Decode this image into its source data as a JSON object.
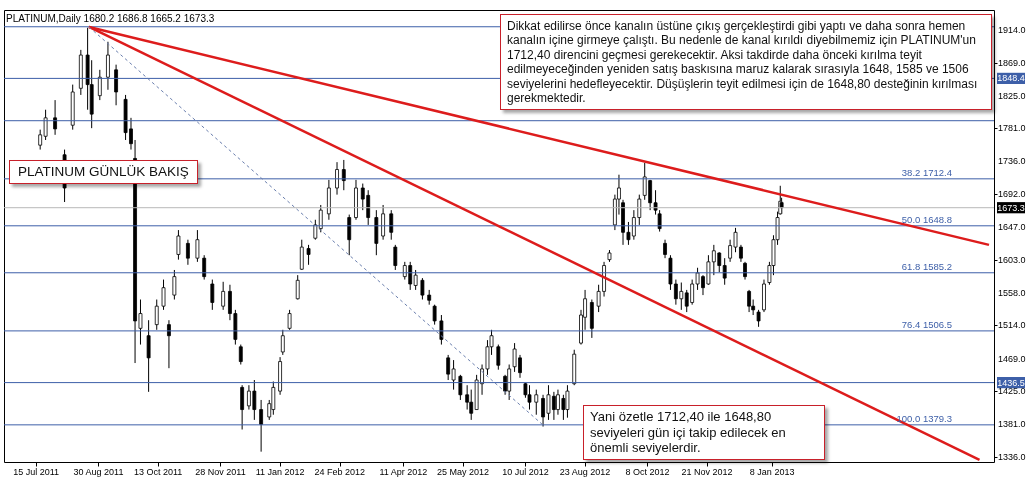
{
  "chart_data": {
    "type": "candlestick",
    "title": "PLATINUM,Daily  1680.2 1686.8 1665.2 1673.3",
    "annotations": [
      "PLATINUM GÜNLÜK BAKIŞ",
      "Dikkat edilirse önce kanalın üstüne çıkış gerçekleştirdi gibi yaptı ve daha sonra hemen kanalın içine girmeye çalıştı. Bu nedenle de kanal kırıldı diyebilmemiz için PLATINUM'un 1712,40 direncini geçmesi gerekecektir. Aksi takdirde daha önceki kırılma teyit edilmeyeceğinden yeniden satış baskısına maruz kalarak sırasıyla 1648, 1585 ve 1506 seviyelerini hedefleyecektir. Düşüşlerin teyit edilmesi için de 1648,80 desteğinin kırılması gerekmektedir.",
      "Yani özetle 1712,40 ile 1648,80 seviyeleri gün içi takip edilecek en önemli seviyelerdir."
    ],
    "color": "#000000",
    "x": [
      "2011-07-18",
      "2011-07-22",
      "2011-07-29",
      "2011-08-05",
      "2011-08-11",
      "2011-08-17",
      "2011-08-22",
      "2011-08-25",
      "2011-08-31",
      "2011-09-06",
      "2011-09-12",
      "2011-09-19",
      "2011-09-23",
      "2011-09-26",
      "2011-09-30",
      "2011-10-06",
      "2011-10-12",
      "2011-10-17",
      "2011-10-21",
      "2011-10-25",
      "2011-10-28",
      "2011-11-04",
      "2011-11-11",
      "2011-11-16",
      "2011-11-22",
      "2011-11-30",
      "2011-12-05",
      "2011-12-09",
      "2011-12-13",
      "2011-12-14",
      "2011-12-19",
      "2011-12-23",
      "2011-12-28",
      "2012-01-03",
      "2012-01-06",
      "2012-01-11",
      "2012-01-13",
      "2012-01-18",
      "2012-01-24",
      "2012-01-27",
      "2012-02-01",
      "2012-02-06",
      "2012-02-10",
      "2012-02-16",
      "2012-02-22",
      "2012-02-27",
      "2012-03-02",
      "2012-03-07",
      "2012-03-12",
      "2012-03-16",
      "2012-03-22",
      "2012-03-27",
      "2012-04-02",
      "2012-04-05",
      "2012-04-12",
      "2012-04-16",
      "2012-04-20",
      "2012-04-25",
      "2012-04-30",
      "2012-05-04",
      "2012-05-09",
      "2012-05-14",
      "2012-05-18",
      "2012-05-23",
      "2012-05-28",
      "2012-05-31",
      "2012-06-04",
      "2012-06-08",
      "2012-06-12",
      "2012-06-15",
      "2012-06-20",
      "2012-06-25",
      "2012-06-28",
      "2012-07-02",
      "2012-07-06",
      "2012-07-10",
      "2012-07-13",
      "2012-07-18",
      "2012-07-23",
      "2012-07-27",
      "2012-07-31",
      "2012-08-03",
      "2012-08-07",
      "2012-08-10",
      "2012-08-15",
      "2012-08-20",
      "2012-08-23",
      "2012-08-28",
      "2012-09-02",
      "2012-09-06",
      "2012-09-10",
      "2012-09-14",
      "2012-09-17",
      "2012-09-20",
      "2012-09-24",
      "2012-09-28",
      "2012-10-02",
      "2012-10-06",
      "2012-10-10",
      "2012-10-14",
      "2012-10-17",
      "2012-10-21",
      "2012-10-25",
      "2012-10-29",
      "2012-11-02",
      "2012-11-06",
      "2012-11-10",
      "2012-11-14",
      "2012-11-18",
      "2012-11-22",
      "2012-11-26",
      "2012-11-30",
      "2012-12-04",
      "2012-12-08",
      "2012-12-12",
      "2012-12-16",
      "2012-12-19",
      "2012-12-22",
      "2012-12-25",
      "2012-12-29",
      "2013-01-02",
      "2013-01-06",
      "2013-01-09",
      "2013-01-12",
      "2013-01-14",
      "2013-01-15"
    ],
    "ohlc": [
      [
        1758,
        1779,
        1752,
        1772
      ],
      [
        1770,
        1806,
        1765,
        1795
      ],
      [
        1795,
        1819,
        1772,
        1780
      ],
      [
        1745,
        1752,
        1681,
        1700
      ],
      [
        1785,
        1840,
        1779,
        1830
      ],
      [
        1835,
        1887,
        1826,
        1880
      ],
      [
        1880,
        1917,
        1806,
        1840
      ],
      [
        1840,
        1873,
        1781,
        1800
      ],
      [
        1825,
        1860,
        1819,
        1850
      ],
      [
        1850,
        1898,
        1833,
        1880
      ],
      [
        1860,
        1867,
        1812,
        1830
      ],
      [
        1820,
        1826,
        1765,
        1775
      ],
      [
        1780,
        1795,
        1752,
        1760
      ],
      [
        1740,
        1765,
        1463,
        1520
      ],
      [
        1510,
        1549,
        1488,
        1530
      ],
      [
        1500,
        1521,
        1424,
        1470
      ],
      [
        1515,
        1549,
        1508,
        1540
      ],
      [
        1540,
        1576,
        1535,
        1565
      ],
      [
        1515,
        1521,
        1456,
        1500
      ],
      [
        1555,
        1589,
        1549,
        1580
      ],
      [
        1610,
        1643,
        1603,
        1635
      ],
      [
        1625,
        1630,
        1596,
        1605
      ],
      [
        1605,
        1643,
        1600,
        1630
      ],
      [
        1605,
        1609,
        1576,
        1580
      ],
      [
        1570,
        1576,
        1535,
        1545
      ],
      [
        1540,
        1573,
        1535,
        1560
      ],
      [
        1560,
        1569,
        1521,
        1530
      ],
      [
        1530,
        1535,
        1488,
        1495
      ],
      [
        1485,
        1488,
        1461,
        1465
      ],
      [
        1430,
        1433,
        1373,
        1400
      ],
      [
        1405,
        1433,
        1400,
        1425
      ],
      [
        1425,
        1440,
        1386,
        1400
      ],
      [
        1400,
        1413,
        1343,
        1380
      ],
      [
        1390,
        1413,
        1386,
        1408
      ],
      [
        1400,
        1438,
        1393,
        1430
      ],
      [
        1425,
        1471,
        1420,
        1465
      ],
      [
        1478,
        1508,
        1474,
        1500
      ],
      [
        1510,
        1535,
        1508,
        1530
      ],
      [
        1550,
        1582,
        1549,
        1575
      ],
      [
        1590,
        1630,
        1589,
        1620
      ],
      [
        1618,
        1623,
        1596,
        1610
      ],
      [
        1632,
        1657,
        1630,
        1650
      ],
      [
        1645,
        1677,
        1640,
        1670
      ],
      [
        1665,
        1711,
        1657,
        1700
      ],
      [
        1700,
        1735,
        1691,
        1725
      ],
      [
        1725,
        1738,
        1697,
        1710
      ],
      [
        1660,
        1664,
        1609,
        1630
      ],
      [
        1660,
        1711,
        1657,
        1700
      ],
      [
        1700,
        1706,
        1670,
        1685
      ],
      [
        1690,
        1697,
        1650,
        1660
      ],
      [
        1660,
        1670,
        1609,
        1625
      ],
      [
        1635,
        1677,
        1630,
        1665
      ],
      [
        1665,
        1670,
        1630,
        1640
      ],
      [
        1620,
        1623,
        1589,
        1595
      ],
      [
        1580,
        1600,
        1576,
        1595
      ],
      [
        1595,
        1600,
        1562,
        1570
      ],
      [
        1568,
        1589,
        1562,
        1582
      ],
      [
        1575,
        1578,
        1549,
        1555
      ],
      [
        1555,
        1562,
        1542,
        1548
      ],
      [
        1540,
        1542,
        1515,
        1520
      ],
      [
        1520,
        1528,
        1488,
        1495
      ],
      [
        1470,
        1474,
        1440,
        1448
      ],
      [
        1440,
        1467,
        1427,
        1455
      ],
      [
        1445,
        1447,
        1413,
        1420
      ],
      [
        1420,
        1433,
        1400,
        1410
      ],
      [
        1410,
        1427,
        1386,
        1395
      ],
      [
        1400,
        1447,
        1400,
        1440
      ],
      [
        1435,
        1461,
        1420,
        1455
      ],
      [
        1455,
        1494,
        1447,
        1485
      ],
      [
        1485,
        1508,
        1474,
        1500
      ],
      [
        1485,
        1488,
        1454,
        1460
      ],
      [
        1445,
        1447,
        1420,
        1425
      ],
      [
        1425,
        1461,
        1413,
        1455
      ],
      [
        1458,
        1490,
        1451,
        1482
      ],
      [
        1470,
        1474,
        1443,
        1450
      ],
      [
        1435,
        1436,
        1416,
        1420
      ],
      [
        1420,
        1433,
        1400,
        1410
      ],
      [
        1410,
        1427,
        1393,
        1420
      ],
      [
        1415,
        1420,
        1377,
        1390
      ],
      [
        1395,
        1433,
        1386,
        1420
      ],
      [
        1418,
        1424,
        1386,
        1400
      ],
      [
        1400,
        1427,
        1393,
        1420
      ],
      [
        1415,
        1420,
        1386,
        1400
      ],
      [
        1400,
        1433,
        1389,
        1425
      ],
      [
        1435,
        1481,
        1433,
        1475
      ],
      [
        1490,
        1535,
        1488,
        1528
      ],
      [
        1525,
        1562,
        1508,
        1550
      ],
      [
        1545,
        1549,
        1497,
        1510
      ],
      [
        1540,
        1569,
        1532,
        1560
      ],
      [
        1560,
        1600,
        1553,
        1595
      ],
      [
        1603,
        1616,
        1600,
        1612
      ],
      [
        1650,
        1691,
        1643,
        1685
      ],
      [
        1685,
        1718,
        1664,
        1700
      ],
      [
        1680,
        1684,
        1623,
        1640
      ],
      [
        1640,
        1654,
        1623,
        1630
      ],
      [
        1635,
        1670,
        1630,
        1660
      ],
      [
        1660,
        1691,
        1650,
        1685
      ],
      [
        1690,
        1734,
        1684,
        1715
      ],
      [
        1710,
        1711,
        1670,
        1680
      ],
      [
        1680,
        1697,
        1664,
        1670
      ],
      [
        1665,
        1670,
        1641,
        1645
      ],
      [
        1625,
        1630,
        1605,
        1610
      ],
      [
        1605,
        1609,
        1562,
        1570
      ],
      [
        1570,
        1576,
        1542,
        1550
      ],
      [
        1550,
        1572,
        1535,
        1560
      ],
      [
        1558,
        1562,
        1532,
        1540
      ],
      [
        1545,
        1576,
        1542,
        1570
      ],
      [
        1570,
        1592,
        1562,
        1585
      ],
      [
        1580,
        1582,
        1555,
        1565
      ],
      [
        1570,
        1609,
        1569,
        1600
      ],
      [
        1600,
        1623,
        1582,
        1615
      ],
      [
        1612,
        1613,
        1586,
        1595
      ],
      [
        1595,
        1605,
        1569,
        1578
      ],
      [
        1605,
        1630,
        1600,
        1622
      ],
      [
        1620,
        1646,
        1613,
        1640
      ],
      [
        1620,
        1623,
        1600,
        1605
      ],
      [
        1598,
        1600,
        1576,
        1580
      ],
      [
        1560,
        1562,
        1532,
        1540
      ],
      [
        1540,
        1549,
        1528,
        1535
      ],
      [
        1532,
        1535,
        1512,
        1520
      ],
      [
        1535,
        1576,
        1532,
        1570
      ],
      [
        1572,
        1600,
        1569,
        1595
      ],
      [
        1595,
        1636,
        1582,
        1630
      ],
      [
        1630,
        1668,
        1623,
        1660
      ],
      [
        1665,
        1703,
        1664,
        1682
      ],
      [
        1680.2,
        1686.8,
        1665.2,
        1673.3
      ]
    ],
    "series": [
      {
        "type": "line",
        "x": [
          "2011-08-23",
          "2013-06-17"
        ],
        "values": [
          1918,
          1623
        ],
        "color": "#dd1c1c",
        "line_style": "solid"
      },
      {
        "type": "line",
        "x": [
          "2011-08-23",
          "2013-06-10"
        ],
        "values": [
          1918,
          1332
        ],
        "color": "#dd1c1c",
        "line_style": "solid"
      },
      {
        "type": "line",
        "x": [
          "2011-08-23",
          "2012-07-23"
        ],
        "values": [
          1918,
          1379
        ],
        "color": "#6b7fae",
        "line_style": "dashed"
      }
    ],
    "ref_lines": [
      {
        "axis": "y",
        "value": 1918.3,
        "label": null,
        "color": "#3d5fa8"
      },
      {
        "axis": "y",
        "value": 1848.4,
        "label": "1848.4",
        "color": "#3d5fa8"
      },
      {
        "axis": "y",
        "value": 1791.1,
        "label": null,
        "color": "#3d5fa8"
      },
      {
        "axis": "y",
        "value": 1712.4,
        "label": "38.2 1712.4",
        "color": "#3d5fa8"
      },
      {
        "axis": "y",
        "value": 1673.3,
        "label": "1673.3",
        "color": "#b8b8b8"
      },
      {
        "axis": "y",
        "value": 1648.8,
        "label": "50.0 1648.8",
        "color": "#3d5fa8"
      },
      {
        "axis": "y",
        "value": 1585.2,
        "label": "61.8 1585.2",
        "color": "#3d5fa8"
      },
      {
        "axis": "y",
        "value": 1506.5,
        "label": "76.4 1506.5",
        "color": "#3d5fa8"
      },
      {
        "axis": "y",
        "value": 1436.5,
        "label": "1436.5",
        "color": "#3d5fa8"
      },
      {
        "axis": "y",
        "value": 1379.3,
        "label": "100.0 1379.3",
        "color": "#3d5fa8"
      }
    ],
    "xlim": [
      "2011-06-25",
      "2013-06-17"
    ],
    "ylim": [
      1329,
      1941
    ],
    "xticks": [
      {
        "value": "2011-07-15",
        "label": "15 Jul 2011"
      },
      {
        "value": "2011-08-30",
        "label": "30 Aug 2011"
      },
      {
        "value": "2011-10-13",
        "label": "13 Oct 2011"
      },
      {
        "value": "2011-11-28",
        "label": "28 Nov 2011"
      },
      {
        "value": "2012-01-11",
        "label": "11 Jan 2012"
      },
      {
        "value": "2012-02-24",
        "label": "24 Feb 2012"
      },
      {
        "value": "2012-04-11",
        "label": "11 Apr 2012"
      },
      {
        "value": "2012-05-25",
        "label": "25 May 2012"
      },
      {
        "value": "2012-07-10",
        "label": "10 Jul 2012"
      },
      {
        "value": "2012-08-23",
        "label": "23 Aug 2012"
      },
      {
        "value": "2012-10-08",
        "label": "8 Oct 2012"
      },
      {
        "value": "2012-11-21",
        "label": "21 Nov 2012"
      },
      {
        "value": "2013-01-08",
        "label": "8 Jan 2013"
      }
    ],
    "yticks": [
      {
        "value": 1914,
        "label": "1914.0"
      },
      {
        "value": 1869,
        "label": "1869.0"
      },
      {
        "value": 1825,
        "label": "1825.0"
      },
      {
        "value": 1781,
        "label": "1781.0"
      },
      {
        "value": 1736,
        "label": "1736.0"
      },
      {
        "value": 1692,
        "label": "1692.0"
      },
      {
        "value": 1647,
        "label": "1647.0"
      },
      {
        "value": 1603,
        "label": "1603.0"
      },
      {
        "value": 1558,
        "label": "1558.0"
      },
      {
        "value": 1514,
        "label": "1514.0"
      },
      {
        "value": 1469,
        "label": "1469.0"
      },
      {
        "value": 1425,
        "label": "1425.0"
      },
      {
        "value": 1381,
        "label": "1381.0"
      },
      {
        "value": 1336,
        "label": "1336.0"
      }
    ]
  }
}
